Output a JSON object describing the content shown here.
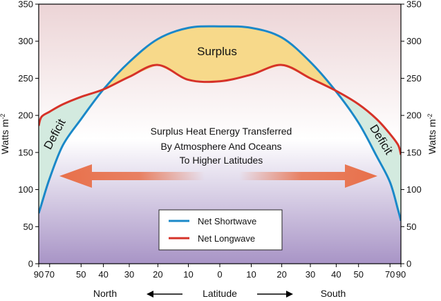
{
  "chart_data": {
    "type": "line",
    "ylabel_left": "Watts  m",
    "ylabel_right": "Watts  m",
    "ylabel_exponent": "-2",
    "ylim": [
      0,
      350
    ],
    "y_ticks": [
      0,
      50,
      100,
      150,
      200,
      250,
      300,
      350
    ],
    "x_axis_label": "Latitude",
    "x_direction_left": "North",
    "x_direction_right": "South",
    "x_ticks": [
      "90",
      "70",
      "50",
      "40",
      "30",
      "20",
      "10",
      "0",
      "10",
      "20",
      "30",
      "40",
      "50",
      "70",
      "90"
    ],
    "x_tick_positions": [
      -90,
      -70,
      -50,
      -40,
      -30,
      -20,
      -10,
      0,
      10,
      20,
      30,
      40,
      50,
      70,
      90
    ],
    "x_scale": "sine of latitude",
    "grid": false,
    "legend_placement": "bottom-center",
    "series": [
      {
        "name": "Net Shortwave",
        "color": "#1a88c8",
        "x": [
          -90,
          -80,
          -70,
          -60,
          -50,
          -40,
          -30,
          -20,
          -10,
          0,
          10,
          20,
          30,
          40,
          50,
          60,
          70,
          80,
          90
        ],
        "y": [
          68,
          80,
          115,
          160,
          195,
          235,
          272,
          303,
          318,
          320,
          318,
          305,
          272,
          232,
          190,
          145,
          110,
          72,
          58
        ]
      },
      {
        "name": "Net Longwave",
        "color": "#d63228",
        "x": [
          -90,
          -80,
          -70,
          -60,
          -50,
          -40,
          -30,
          -20,
          -10,
          0,
          10,
          20,
          30,
          40,
          50,
          60,
          70,
          80,
          90
        ],
        "y": [
          186,
          198,
          205,
          215,
          225,
          235,
          252,
          268,
          248,
          246,
          255,
          268,
          250,
          233,
          215,
          195,
          175,
          160,
          147
        ]
      }
    ],
    "annotations": {
      "surplus": "Surplus",
      "deficit_left": "Deficit",
      "deficit_right": "Deficit",
      "transfer_line1": "Surplus Heat Energy Transferred",
      "transfer_line2": "By Atmosphere And Oceans",
      "transfer_line3": "To Higher Latitudes"
    },
    "colors": {
      "surplus_fill": "#f7d98a",
      "deficit_fill": "#d3eadf",
      "arrow": "#e8704a",
      "background_top": "#ecd4d6",
      "background_mid": "#ffffff",
      "background_bottom": "#a894c6"
    }
  }
}
